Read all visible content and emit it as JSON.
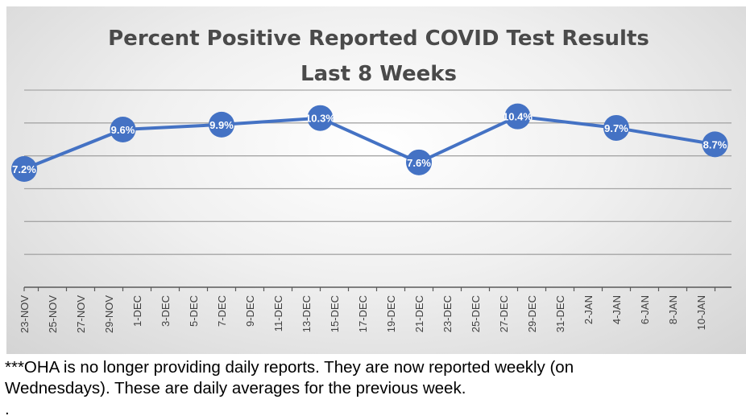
{
  "chart_data": {
    "type": "line",
    "title": [
      "Percent Positive Reported COVID Test Results",
      "Last 8 Weeks"
    ],
    "categories": [
      "23-NOV",
      "25-NOV",
      "27-NOV",
      "29-NOV",
      "1-DEC",
      "3-DEC",
      "5-DEC",
      "7-DEC",
      "9-DEC",
      "11-DEC",
      "13-DEC",
      "15-DEC",
      "17-DEC",
      "19-DEC",
      "21-DEC",
      "23-DEC",
      "25-DEC",
      "27-DEC",
      "29-DEC",
      "31-DEC",
      "2-JAN",
      "4-JAN",
      "6-JAN",
      "8-JAN",
      "10-JAN"
    ],
    "series": [
      {
        "name": "Percent Positive",
        "points": [
          {
            "x_index": 0,
            "value": 7.2,
            "label": "7.2%"
          },
          {
            "x_index": 3.5,
            "value": 9.6,
            "label": "9.6%"
          },
          {
            "x_index": 7,
            "value": 9.9,
            "label": "9.9%"
          },
          {
            "x_index": 10.5,
            "value": 10.3,
            "label": "10.3%"
          },
          {
            "x_index": 14,
            "value": 7.6,
            "label": "7.6%"
          },
          {
            "x_index": 17.5,
            "value": 10.4,
            "label": "10.4%"
          },
          {
            "x_index": 21,
            "value": 9.7,
            "label": "9.7%"
          },
          {
            "x_index": 24.5,
            "value": 8.7,
            "label": "8.7%"
          }
        ],
        "color": "#4472c4"
      }
    ],
    "ylim": [
      0,
      12
    ],
    "gridlines": 6,
    "xlabel": "",
    "ylabel": "",
    "legend": "none"
  },
  "footnote": {
    "line1": "***OHA is no longer providing daily reports.  They are now reported weekly (on",
    "line2": "Wednesdays). These are daily averages for the previous week.",
    "line3": "."
  }
}
